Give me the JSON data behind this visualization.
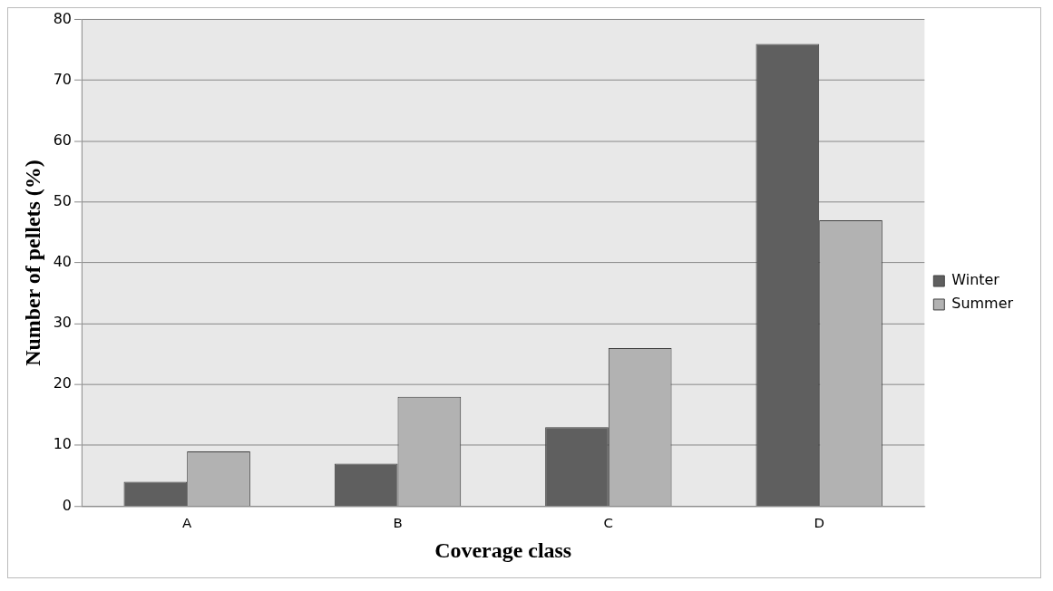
{
  "chart_data": {
    "type": "bar",
    "xlabel": "Coverage class",
    "ylabel": "Number of pellets (%)",
    "categories": [
      "A",
      "B",
      "C",
      "D"
    ],
    "series": [
      {
        "name": "Winter",
        "color": "#5f5f5f",
        "values": [
          4,
          7,
          13,
          76
        ]
      },
      {
        "name": "Summer",
        "color": "#b2b2b2",
        "values": [
          9,
          18,
          26,
          47
        ]
      }
    ],
    "ylim": [
      0,
      80
    ],
    "yticks": [
      0,
      10,
      20,
      30,
      40,
      50,
      60,
      70,
      80
    ],
    "grid": "y",
    "legend": "right"
  }
}
